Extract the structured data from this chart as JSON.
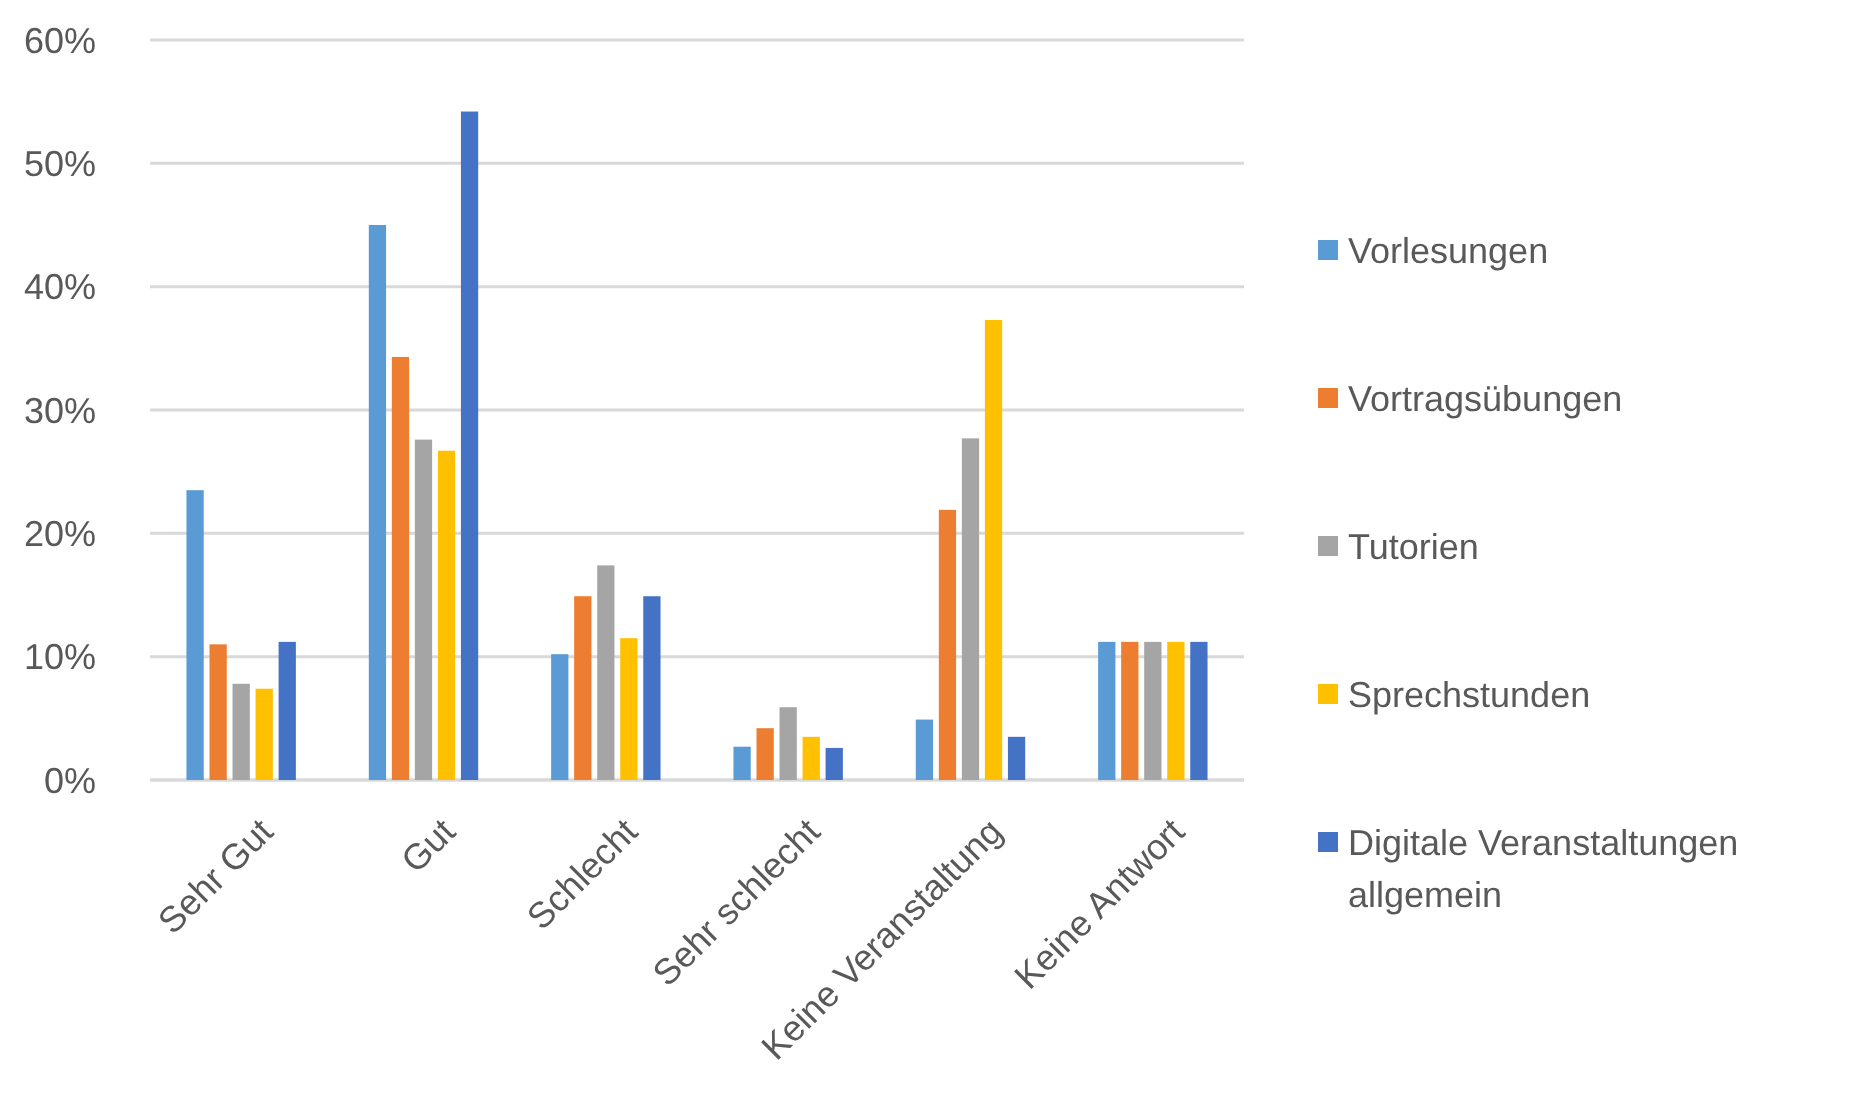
{
  "chart_data": {
    "type": "bar",
    "categories": [
      "Sehr Gut",
      "Gut",
      "Schlecht",
      "Sehr schlecht",
      "Keine Veranstaltung",
      "Keine Antwort"
    ],
    "series": [
      {
        "name": "Vorlesungen",
        "color": "#5b9bd5",
        "values": [
          23.5,
          45,
          10.2,
          2.7,
          4.9,
          11.2
        ]
      },
      {
        "name": "Vortragsübungen",
        "color": "#ed7d31",
        "values": [
          11,
          34.3,
          14.9,
          4.2,
          21.9,
          11.2
        ]
      },
      {
        "name": "Tutorien",
        "color": "#a5a5a5",
        "values": [
          7.8,
          27.6,
          17.4,
          5.9,
          27.7,
          11.2
        ]
      },
      {
        "name": "Sprechstunden",
        "color": "#ffc000",
        "values": [
          7.4,
          26.7,
          11.5,
          3.5,
          37.3,
          11.2
        ]
      },
      {
        "name": "Digitale Veranstaltungen allgemein",
        "color": "#4472c4",
        "values": [
          11.2,
          54.2,
          14.9,
          2.6,
          3.5,
          11.2
        ]
      }
    ],
    "ylim": [
      0,
      60
    ],
    "yticks": [
      {
        "value": 0,
        "label": "0%"
      },
      {
        "value": 10,
        "label": "10%"
      },
      {
        "value": 20,
        "label": "20%"
      },
      {
        "value": 30,
        "label": "30%"
      },
      {
        "value": 40,
        "label": "40%"
      },
      {
        "value": 50,
        "label": "50%"
      },
      {
        "value": 60,
        "label": "60%"
      }
    ],
    "grid": "y",
    "legend": "right"
  }
}
